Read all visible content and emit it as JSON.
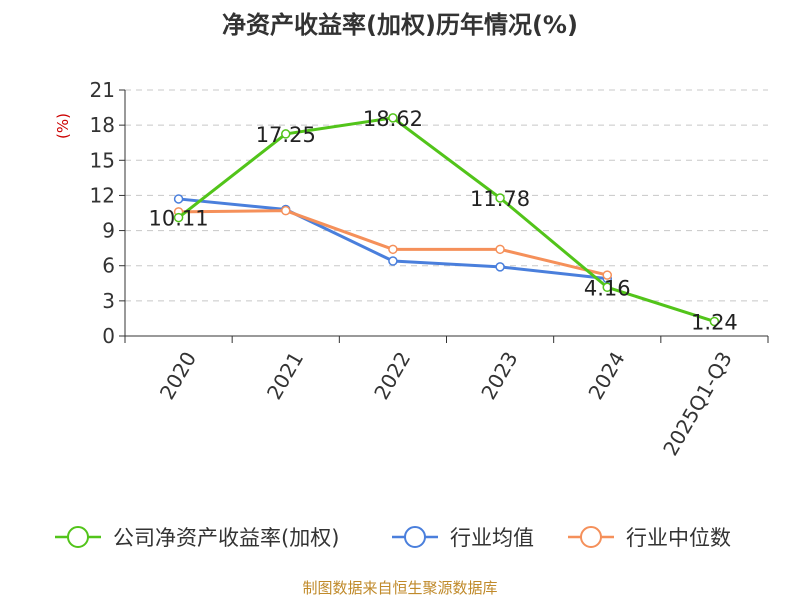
{
  "chart_data": {
    "type": "line",
    "title": "净资产收益率(加权)历年情况(%)",
    "ylabel": "(%)",
    "xlabel": "",
    "categories": [
      "2020",
      "2021",
      "2022",
      "2023",
      "2024",
      "2025Q1-Q3"
    ],
    "ylim": [
      0,
      21
    ],
    "yticks": [
      0,
      3,
      6,
      9,
      12,
      15,
      18,
      21
    ],
    "grid": true,
    "legend_position": "bottom",
    "series": [
      {
        "name": "公司净资产收益率(加权)",
        "color": "#52c41a",
        "values": [
          10.11,
          17.25,
          18.62,
          11.78,
          4.16,
          1.24
        ],
        "labels": [
          "10.11",
          "17.25",
          "18.62",
          "11.78",
          "4.16",
          "1.24"
        ]
      },
      {
        "name": "行业均值",
        "color": "#4a7fdc",
        "values": [
          11.7,
          10.8,
          6.4,
          5.9,
          4.9,
          null
        ]
      },
      {
        "name": "行业中位数",
        "color": "#f5905a",
        "values": [
          10.6,
          10.7,
          7.4,
          7.4,
          5.2,
          null
        ]
      }
    ],
    "source": "制图数据来自恒生聚源数据库"
  }
}
